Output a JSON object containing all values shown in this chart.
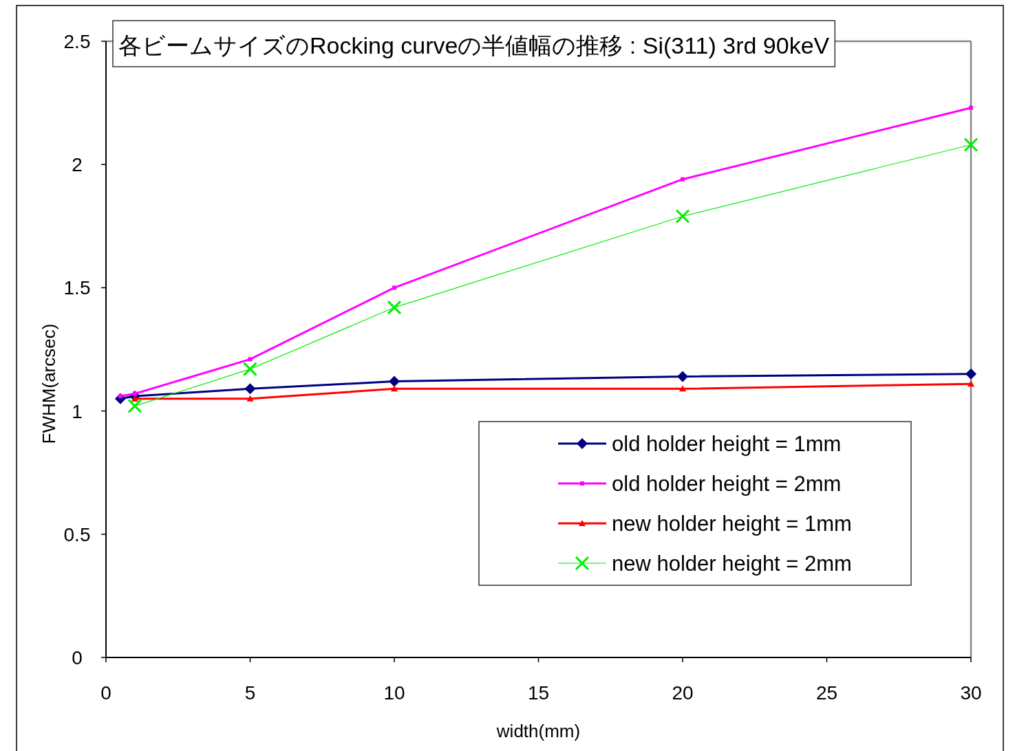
{
  "chart_data": {
    "type": "line",
    "title": "各ビームサイズのRocking curveの半値幅の推移 : Si(311) 3rd 90keV",
    "xlabel": "width(mm)",
    "ylabel": "FWHM(arcsec)",
    "xlim": [
      0,
      30
    ],
    "xticks": [
      0,
      5,
      10,
      15,
      20,
      25,
      30
    ],
    "ylim": [
      0,
      2.5
    ],
    "yticks": [
      0,
      0.5,
      1,
      1.5,
      2,
      2.5
    ],
    "grid": false,
    "legend": "bottom right",
    "series": [
      {
        "name": "old holder height = 1mm",
        "color": "#000080",
        "marker": "diamond",
        "x": [
          0.5,
          1,
          5,
          10,
          20,
          30
        ],
        "values": [
          1.05,
          1.06,
          1.09,
          1.12,
          1.14,
          1.15
        ]
      },
      {
        "name": "old holder height = 2mm",
        "color": "#ff00ff",
        "marker": "square",
        "x": [
          0.5,
          1,
          5,
          10,
          20,
          30
        ],
        "values": [
          1.06,
          1.07,
          1.21,
          1.5,
          1.94,
          2.23
        ]
      },
      {
        "name": "new holder height = 1mm",
        "color": "#ff0000",
        "marker": "triangle",
        "x": [
          1,
          5,
          10,
          20,
          30
        ],
        "values": [
          1.05,
          1.05,
          1.09,
          1.09,
          1.11
        ]
      },
      {
        "name": "new holder height = 2mm",
        "color": "#00ee00",
        "marker": "cross",
        "x": [
          1,
          5,
          10,
          20,
          30
        ],
        "values": [
          1.02,
          1.17,
          1.42,
          1.79,
          2.08
        ]
      }
    ]
  }
}
